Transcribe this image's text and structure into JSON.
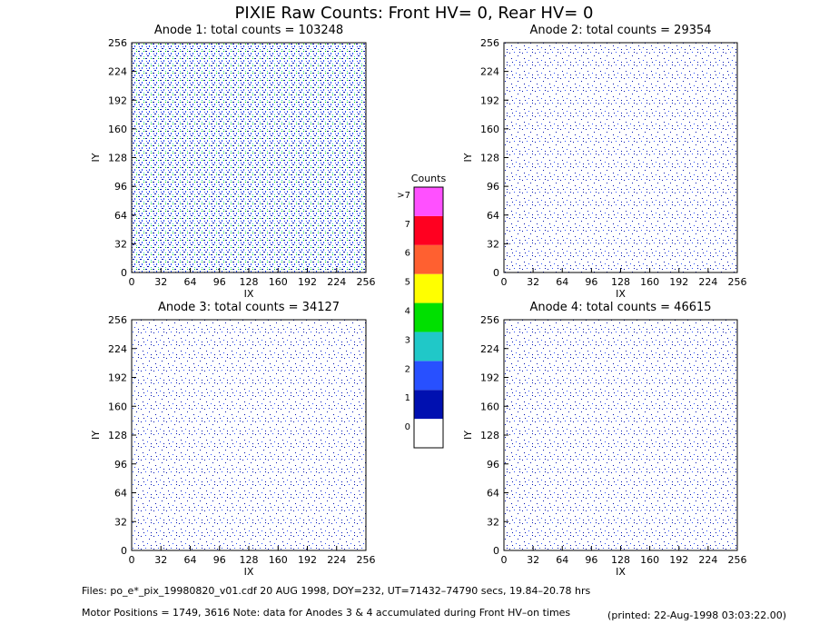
{
  "title": "PIXIE Raw Counts:  Front HV= 0, Rear HV= 0",
  "chart_data": [
    {
      "type": "heatmap",
      "title": "Anode 1: total counts = 103248",
      "xlabel": "IX",
      "ylabel": "IY",
      "xlim": [
        0,
        256
      ],
      "ylim": [
        0,
        256
      ],
      "xticks": [
        0,
        32,
        64,
        96,
        128,
        160,
        192,
        224,
        256
      ],
      "yticks": [
        0,
        32,
        64,
        96,
        128,
        160,
        192,
        224,
        256
      ]
    },
    {
      "type": "heatmap",
      "title": "Anode 2: total counts = 29354",
      "xlabel": "IX",
      "ylabel": "IY",
      "xlim": [
        0,
        256
      ],
      "ylim": [
        0,
        256
      ],
      "xticks": [
        0,
        32,
        64,
        96,
        128,
        160,
        192,
        224,
        256
      ],
      "yticks": [
        0,
        32,
        64,
        96,
        128,
        160,
        192,
        224,
        256
      ]
    },
    {
      "type": "heatmap",
      "title": "Anode 3: total counts = 34127",
      "xlabel": "IX",
      "ylabel": "IY",
      "xlim": [
        0,
        256
      ],
      "ylim": [
        0,
        256
      ],
      "xticks": [
        0,
        32,
        64,
        96,
        128,
        160,
        192,
        224,
        256
      ],
      "yticks": [
        0,
        32,
        64,
        96,
        128,
        160,
        192,
        224,
        256
      ]
    },
    {
      "type": "heatmap",
      "title": "Anode 4: total counts = 46615",
      "xlabel": "IX",
      "ylabel": "IY",
      "xlim": [
        0,
        256
      ],
      "ylim": [
        0,
        256
      ],
      "xticks": [
        0,
        32,
        64,
        96,
        128,
        160,
        192,
        224,
        256
      ],
      "yticks": [
        0,
        32,
        64,
        96,
        128,
        160,
        192,
        224,
        256
      ]
    }
  ],
  "colorbar": {
    "title": "Counts",
    "levels": [
      0,
      1,
      2,
      3,
      4,
      5,
      6,
      7,
      {
        "value": 8,
        "label": ">7"
      }
    ],
    "colors": [
      "#ffffff",
      "#0010b0",
      "#2850ff",
      "#20c8c8",
      "#00e000",
      "#ffff00",
      "#ff6030",
      "#ff0020",
      "#ff50ff"
    ]
  },
  "footer": {
    "line1": "Files: po_e*_pix_19980820_v01.cdf    20 AUG 1998, DOY=232, UT=71432–74790 secs, 19.84–20.78 hrs",
    "line2": "Motor Positions = 1749, 3616    Note: data for Anodes 3 & 4 accumulated during Front HV–on times",
    "printed": "(printed: 22-Aug-1998 03:03:22.00)"
  }
}
